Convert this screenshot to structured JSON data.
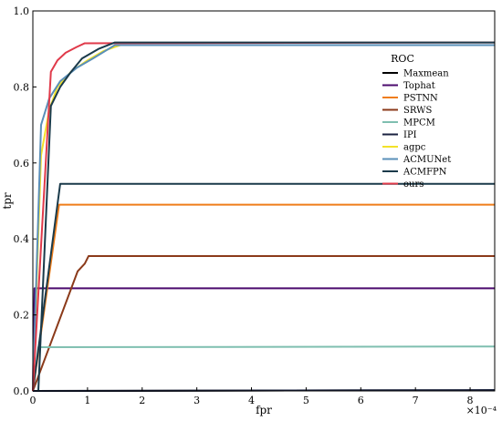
{
  "chart_data": {
    "type": "line",
    "xlabel": "fpr",
    "ylabel": "tpr",
    "x_scale_note": "×10⁻⁴",
    "xlim": [
      0,
      8.45
    ],
    "ylim": [
      0,
      1.0
    ],
    "xticks": [
      0,
      1,
      2,
      3,
      4,
      5,
      6,
      7,
      8
    ],
    "xtick_labels": [
      "0",
      "1",
      "2",
      "3",
      "4",
      "5",
      "6",
      "7",
      "8"
    ],
    "yticks": [
      0.0,
      0.2,
      0.4,
      0.6,
      0.8,
      1.0
    ],
    "ytick_labels": [
      "0.0",
      "0.2",
      "0.4",
      "0.6",
      "0.8",
      "1.0"
    ],
    "grid": false,
    "legend": {
      "title": "ROC",
      "placement": "upper-right"
    },
    "series": [
      {
        "name": "Maxmean",
        "color": "#000000",
        "points": [
          [
            0,
            0.0
          ],
          [
            8.45,
            0.002
          ]
        ]
      },
      {
        "name": "Tophat",
        "color": "#4b0a6e",
        "points": [
          [
            0,
            0.0
          ],
          [
            0.03,
            0.27
          ],
          [
            8.45,
            0.27
          ]
        ]
      },
      {
        "name": "PSTNN",
        "color": "#ef7d1a",
        "points": [
          [
            0,
            0.0
          ],
          [
            0.48,
            0.49
          ],
          [
            8.45,
            0.49
          ]
        ]
      },
      {
        "name": "SRWS",
        "color": "#8b3a1a",
        "points": [
          [
            0,
            0.0
          ],
          [
            0.82,
            0.315
          ],
          [
            0.95,
            0.335
          ],
          [
            1.02,
            0.355
          ],
          [
            8.45,
            0.355
          ]
        ]
      },
      {
        "name": "MPCM",
        "color": "#7fbfb0",
        "points": [
          [
            0,
            0.0
          ],
          [
            0.1,
            0.115
          ],
          [
            8.45,
            0.117
          ]
        ]
      },
      {
        "name": "IPI",
        "color": "#1a2240",
        "points": [
          [
            0,
            0.0
          ],
          [
            8.45,
            0.002
          ]
        ]
      },
      {
        "name": "agpc",
        "color": "#f2e22a",
        "points": [
          [
            0,
            0.0
          ],
          [
            0.15,
            0.62
          ],
          [
            0.3,
            0.74
          ],
          [
            0.45,
            0.8
          ],
          [
            0.7,
            0.84
          ],
          [
            1.0,
            0.87
          ],
          [
            1.3,
            0.895
          ],
          [
            1.6,
            0.91
          ],
          [
            8.45,
            0.91
          ]
        ]
      },
      {
        "name": "ACMUNet",
        "color": "#5a8fb8",
        "points": [
          [
            0,
            0.0
          ],
          [
            0.15,
            0.7
          ],
          [
            0.3,
            0.77
          ],
          [
            0.5,
            0.815
          ],
          [
            0.8,
            0.85
          ],
          [
            1.1,
            0.875
          ],
          [
            1.5,
            0.91
          ],
          [
            8.45,
            0.91
          ]
        ]
      },
      {
        "name": "ACMFPN",
        "color": "#1a3a4a",
        "points": [
          [
            0,
            0.0
          ],
          [
            0.5,
            0.545
          ],
          [
            8.45,
            0.545
          ]
        ]
      },
      {
        "name": "ours",
        "color": "#e03a4a",
        "points": [
          [
            0,
            0.0
          ],
          [
            0.33,
            0.84
          ],
          [
            0.45,
            0.87
          ],
          [
            0.6,
            0.89
          ],
          [
            0.8,
            0.905
          ],
          [
            0.95,
            0.915
          ],
          [
            8.45,
            0.917
          ]
        ]
      },
      {
        "name": "",
        "color": "#1a3a4a",
        "points": [
          [
            0.1,
            0.0
          ],
          [
            0.33,
            0.75
          ],
          [
            0.5,
            0.8
          ],
          [
            0.7,
            0.84
          ],
          [
            0.9,
            0.875
          ],
          [
            1.2,
            0.9
          ],
          [
            1.5,
            0.917
          ],
          [
            8.45,
            0.917
          ]
        ]
      }
    ]
  }
}
